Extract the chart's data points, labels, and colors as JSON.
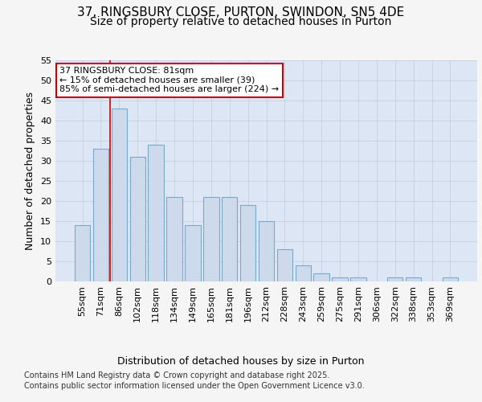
{
  "title_line1": "37, RINGSBURY CLOSE, PURTON, SWINDON, SN5 4DE",
  "title_line2": "Size of property relative to detached houses in Purton",
  "xlabel": "Distribution of detached houses by size in Purton",
  "ylabel": "Number of detached properties",
  "categories": [
    "55sqm",
    "71sqm",
    "86sqm",
    "102sqm",
    "118sqm",
    "134sqm",
    "149sqm",
    "165sqm",
    "181sqm",
    "196sqm",
    "212sqm",
    "228sqm",
    "243sqm",
    "259sqm",
    "275sqm",
    "291sqm",
    "306sqm",
    "322sqm",
    "338sqm",
    "353sqm",
    "369sqm"
  ],
  "values": [
    14,
    33,
    43,
    31,
    34,
    21,
    14,
    21,
    21,
    19,
    15,
    8,
    4,
    2,
    1,
    1,
    0,
    1,
    1,
    0,
    1
  ],
  "bar_color": "#ccdaeb",
  "bar_edge_color": "#7aaac8",
  "vline_color": "#cc0000",
  "annotation_text": "37 RINGSBURY CLOSE: 81sqm\n← 15% of detached houses are smaller (39)\n85% of semi-detached houses are larger (224) →",
  "annotation_box_color": "#ffffff",
  "annotation_box_edge": "#cc0000",
  "ylim": [
    0,
    55
  ],
  "yticks": [
    0,
    5,
    10,
    15,
    20,
    25,
    30,
    35,
    40,
    45,
    50,
    55
  ],
  "grid_color": "#c0cbdc",
  "background_color": "#dde6f5",
  "fig_background": "#f5f5f5",
  "footer_line1": "Contains HM Land Registry data © Crown copyright and database right 2025.",
  "footer_line2": "Contains public sector information licensed under the Open Government Licence v3.0.",
  "title_fontsize": 11,
  "subtitle_fontsize": 10,
  "axis_label_fontsize": 9,
  "tick_fontsize": 8,
  "footer_fontsize": 7,
  "annotation_fontsize": 8
}
